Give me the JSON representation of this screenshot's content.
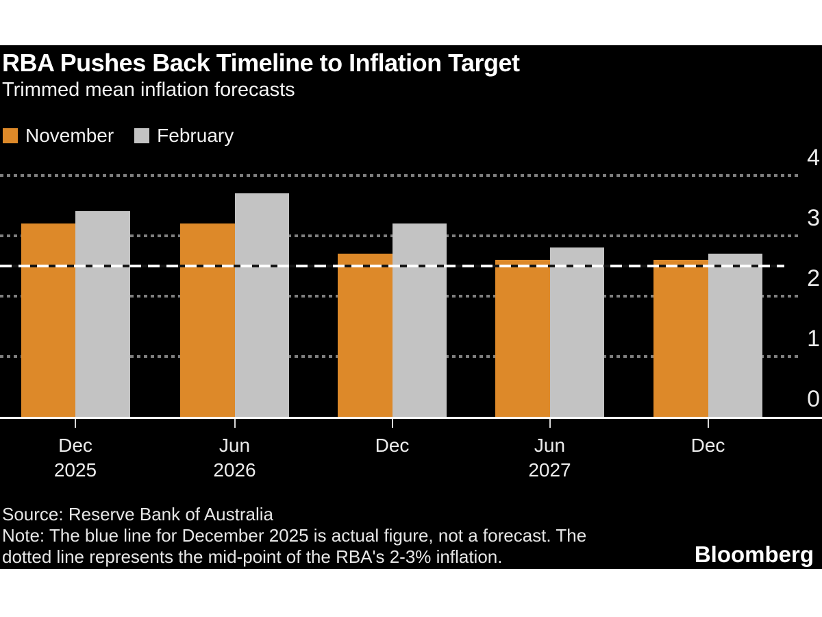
{
  "header": {
    "title": "RBA Pushes Back Timeline to Inflation Target",
    "subtitle": "Trimmed mean inflation forecasts"
  },
  "legend": {
    "items": [
      {
        "label": "November",
        "color": "#dd8929"
      },
      {
        "label": "February",
        "color": "#c3c3c3"
      }
    ]
  },
  "chart_data": {
    "type": "bar",
    "title": "RBA Pushes Back Timeline to Inflation Target",
    "subtitle": "Trimmed mean inflation forecasts",
    "categories": [
      "Dec 2025",
      "Jun 2026",
      "Dec 2026",
      "Jun 2027",
      "Dec 2027"
    ],
    "x_tick_lines": [
      {
        "month": "Dec",
        "year": "2025"
      },
      {
        "month": "Jun",
        "year": "2026"
      },
      {
        "month": "Dec",
        "year": ""
      },
      {
        "month": "Jun",
        "year": "2027"
      },
      {
        "month": "Dec",
        "year": ""
      }
    ],
    "series": [
      {
        "name": "November",
        "color": "#dd8929",
        "values": [
          3.2,
          3.2,
          2.7,
          2.6,
          2.6
        ]
      },
      {
        "name": "February",
        "color": "#c3c3c3",
        "values": [
          3.4,
          3.7,
          3.2,
          2.8,
          2.7
        ]
      }
    ],
    "ylim": [
      0,
      4
    ],
    "yticks": [
      0,
      1,
      2,
      3,
      4
    ],
    "y_axis_side": "right",
    "grid": "dotted-horizontal",
    "legend_position": "top-left",
    "reference_line": {
      "value": 2.5,
      "style": "dashed",
      "color": "#ffffff",
      "meaning": "mid-point of RBA 2-3% inflation target"
    }
  },
  "footer": {
    "source": "Source: Reserve Bank of Australia",
    "note_lines": [
      "Note: The blue line for December 2025 is actual figure, not a forecast. The",
      "dotted line represents the mid-point of the RBA's 2-3% inflation."
    ],
    "brand": "Bloomberg"
  }
}
